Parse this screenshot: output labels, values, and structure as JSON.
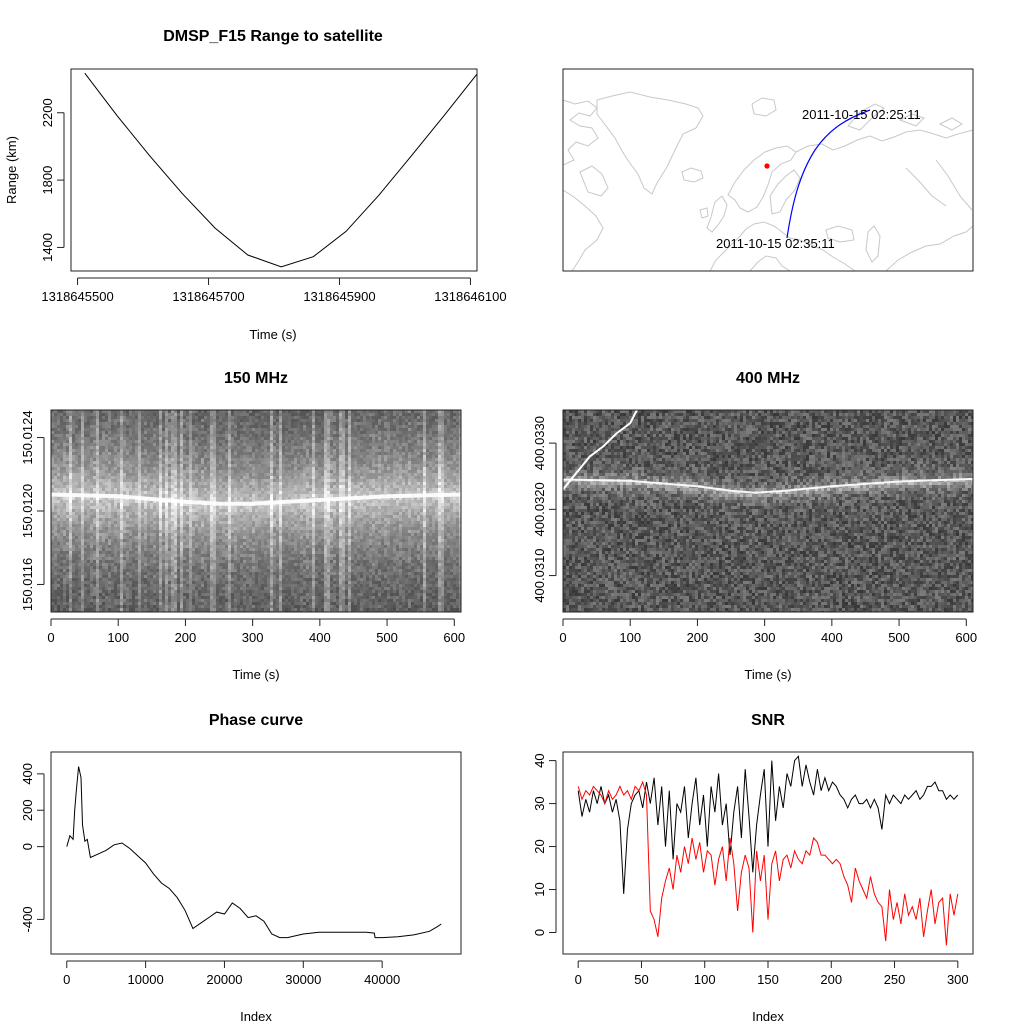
{
  "figure": {
    "background": "#ffffff"
  },
  "chart_data": [
    {
      "id": "range",
      "type": "line",
      "title": "DMSP_F15 Range to satellite",
      "xlabel": "Time (s)",
      "ylabel": "Range (km)",
      "xlim": [
        1318645490,
        1318646110
      ],
      "ylim": [
        1260,
        2460
      ],
      "xticks": [
        1318645500,
        1318645700,
        1318645900,
        1318646100
      ],
      "xtick_labels": [
        "1318645500",
        "1318645700",
        "1318645900",
        "1318646100"
      ],
      "yticks": [
        1400,
        1800,
        2200
      ],
      "ytick_labels": [
        "1400",
        "1800",
        "2200"
      ],
      "series": [
        {
          "color": "#000000",
          "x": [
            1318645511,
            1318645560,
            1318645610,
            1318645660,
            1318645710,
            1318645760,
            1318645811,
            1318645860,
            1318645910,
            1318645960,
            1318646010,
            1318646060,
            1318646111
          ],
          "y": [
            2435,
            2185,
            1945,
            1720,
            1515,
            1355,
            1285,
            1345,
            1495,
            1710,
            1945,
            2185,
            2435
          ]
        }
      ]
    },
    {
      "id": "groundtrack",
      "type": "map",
      "title": "",
      "coastline_color": "#c8c8c8",
      "track_color": "#0000ff",
      "station_color": "#ff0000",
      "track_start_label": "2011-10-15 02:25:11",
      "track_end_label": "2011-10-15 02:35:11"
    },
    {
      "id": "spec150",
      "type": "heatmap",
      "title": "150 MHz",
      "xlabel": "Time (s)",
      "ylabel": "",
      "xlim": [
        0,
        610
      ],
      "ylim": [
        150.01145,
        150.01255
      ],
      "xticks": [
        0,
        100,
        200,
        300,
        400,
        500,
        600
      ],
      "xtick_labels": [
        "0",
        "100",
        "200",
        "300",
        "400",
        "500",
        "600"
      ],
      "yticks": [
        150.0116,
        150.012,
        150.0124
      ],
      "ytick_labels": [
        "150.0116",
        "150.0120",
        "150.0124"
      ],
      "colormap": "grayscale",
      "signal_line": {
        "t": [
          0,
          100,
          200,
          250,
          300,
          350,
          400,
          450,
          500,
          610
        ],
        "f": [
          150.01209,
          150.01208,
          150.01205,
          150.01204,
          150.01204,
          150.01205,
          150.01206,
          150.01207,
          150.01208,
          150.01209
        ]
      }
    },
    {
      "id": "spec400",
      "type": "heatmap",
      "title": "400 MHz",
      "xlabel": "Time (s)",
      "ylabel": "",
      "xlim": [
        0,
        610
      ],
      "ylim": [
        400.03045,
        400.0335
      ],
      "xticks": [
        0,
        100,
        200,
        300,
        400,
        500,
        600
      ],
      "xtick_labels": [
        "0",
        "100",
        "200",
        "300",
        "400",
        "500",
        "600"
      ],
      "yticks": [
        400.031,
        400.032,
        400.033
      ],
      "ytick_labels": [
        "400.0310",
        "400.0320",
        "400.0330"
      ],
      "colormap": "grayscale",
      "signal_line": {
        "t": [
          0,
          100,
          200,
          250,
          285,
          330,
          400,
          500,
          610
        ],
        "f": [
          400.03245,
          400.03243,
          400.03235,
          400.03228,
          400.03225,
          400.03228,
          400.03235,
          400.03242,
          400.03246
        ]
      },
      "doppler_arc": {
        "t": [
          0,
          20,
          40,
          60,
          80,
          100,
          110
        ],
        "f": [
          400.0323,
          400.03255,
          400.0328,
          400.03295,
          400.03315,
          400.0333,
          400.0335
        ]
      }
    },
    {
      "id": "phase",
      "type": "line",
      "title": "Phase curve",
      "xlabel": "Index",
      "ylabel": "",
      "xlim": [
        -2000,
        50000
      ],
      "ylim": [
        -590,
        520
      ],
      "xticks": [
        0,
        10000,
        20000,
        30000,
        40000
      ],
      "xtick_labels": [
        "0",
        "10000",
        "20000",
        "30000",
        "40000"
      ],
      "yticks": [
        -400,
        0,
        200,
        400
      ],
      "ytick_labels": [
        "-400",
        "0",
        "200",
        "400"
      ],
      "series": [
        {
          "color": "#000000",
          "x": [
            0,
            400,
            800,
            1000,
            1200,
            1500,
            1800,
            2000,
            2300,
            2600,
            3000,
            4000,
            5000,
            6000,
            7000,
            8000,
            9000,
            10000,
            11000,
            12000,
            13000,
            14000,
            15000,
            16000,
            17000,
            18000,
            19000,
            20000,
            21000,
            22000,
            23000,
            24000,
            25000,
            26000,
            27000,
            28000,
            30000,
            32000,
            34000,
            36000,
            38000,
            39000,
            39100,
            40000,
            42000,
            44000,
            46000,
            47000,
            47500
          ],
          "y": [
            0,
            60,
            40,
            200,
            300,
            440,
            380,
            120,
            30,
            40,
            -60,
            -40,
            -20,
            10,
            20,
            -10,
            -50,
            -90,
            -150,
            -200,
            -230,
            -280,
            -350,
            -450,
            -420,
            -390,
            -360,
            -370,
            -310,
            -340,
            -390,
            -380,
            -410,
            -480,
            -500,
            -500,
            -480,
            -470,
            -470,
            -470,
            -470,
            -475,
            -500,
            -500,
            -495,
            -485,
            -465,
            -440,
            -425
          ]
        }
      ]
    },
    {
      "id": "snr",
      "type": "line",
      "title": "SNR",
      "xlabel": "Index",
      "ylabel": "",
      "xlim": [
        -12,
        312
      ],
      "ylim": [
        -5,
        42
      ],
      "xticks": [
        0,
        50,
        100,
        150,
        200,
        250,
        300
      ],
      "xtick_labels": [
        "0",
        "50",
        "100",
        "150",
        "200",
        "250",
        "300"
      ],
      "yticks": [
        0,
        10,
        20,
        30,
        40
      ],
      "ytick_labels": [
        "0",
        "10",
        "20",
        "30",
        "40"
      ],
      "series": [
        {
          "color": "#000000",
          "x": [
            0,
            3,
            6,
            9,
            12,
            15,
            18,
            21,
            24,
            27,
            30,
            33,
            36,
            39,
            42,
            45,
            48,
            51,
            54,
            57,
            60,
            63,
            66,
            69,
            72,
            75,
            78,
            81,
            84,
            87,
            90,
            93,
            96,
            99,
            102,
            105,
            108,
            111,
            114,
            117,
            120,
            123,
            126,
            129,
            132,
            135,
            138,
            141,
            144,
            147,
            150,
            153,
            156,
            159,
            162,
            165,
            168,
            171,
            174,
            177,
            180,
            183,
            186,
            189,
            192,
            195,
            198,
            201,
            204,
            207,
            210,
            213,
            216,
            219,
            222,
            225,
            228,
            231,
            234,
            237,
            240,
            243,
            246,
            249,
            252,
            255,
            258,
            261,
            264,
            267,
            270,
            273,
            276,
            279,
            282,
            285,
            288,
            291,
            294,
            297,
            300
          ],
          "y": [
            33,
            27,
            31,
            28,
            33,
            30,
            34,
            30,
            32,
            28,
            31,
            26,
            9,
            24,
            30,
            32,
            33,
            29,
            35,
            30,
            36,
            25,
            34,
            20,
            33,
            17,
            30,
            28,
            34,
            22,
            30,
            36,
            25,
            32,
            20,
            34,
            28,
            37,
            25,
            30,
            18,
            28,
            34,
            22,
            38,
            27,
            14,
            25,
            32,
            38,
            20,
            40,
            26,
            34,
            29,
            37,
            34,
            40,
            41,
            34,
            39,
            35,
            32,
            38,
            33,
            36,
            33,
            35,
            34,
            32,
            31,
            29,
            31,
            32,
            30,
            30,
            31,
            29,
            31,
            29,
            24,
            32,
            30,
            32,
            31,
            30,
            32,
            31,
            32,
            33,
            31,
            32,
            34,
            34,
            35,
            33,
            33,
            31,
            32,
            31,
            32
          ]
        },
        {
          "color": "#ff0000",
          "x": [
            0,
            3,
            6,
            9,
            12,
            15,
            18,
            21,
            24,
            27,
            30,
            33,
            36,
            39,
            42,
            45,
            48,
            51,
            54,
            57,
            60,
            63,
            66,
            69,
            72,
            75,
            78,
            81,
            84,
            87,
            90,
            93,
            96,
            99,
            102,
            105,
            108,
            111,
            114,
            117,
            120,
            123,
            126,
            129,
            132,
            135,
            138,
            141,
            144,
            147,
            150,
            153,
            156,
            159,
            162,
            165,
            168,
            171,
            174,
            177,
            180,
            183,
            186,
            189,
            192,
            195,
            198,
            201,
            204,
            207,
            210,
            213,
            216,
            219,
            222,
            225,
            228,
            231,
            234,
            237,
            240,
            243,
            246,
            249,
            252,
            255,
            258,
            261,
            264,
            267,
            270,
            273,
            276,
            279,
            282,
            285,
            288,
            291,
            294,
            297,
            300
          ],
          "y": [
            34,
            31,
            33,
            32,
            34,
            33,
            32,
            30,
            33,
            31,
            32,
            34,
            32,
            33,
            31,
            34,
            33,
            35,
            32,
            5,
            3,
            -1,
            8,
            12,
            15,
            10,
            18,
            14,
            20,
            16,
            22,
            17,
            21,
            14,
            19,
            18,
            11,
            17,
            20,
            12,
            22,
            16,
            5,
            14,
            18,
            15,
            0,
            19,
            12,
            18,
            3,
            16,
            19,
            12,
            17,
            18,
            15,
            19,
            17,
            16,
            19,
            18,
            22,
            21,
            18,
            18,
            17,
            16,
            17,
            16,
            13,
            11,
            7,
            15,
            12,
            10,
            8,
            13,
            9,
            7,
            6,
            -2,
            10,
            3,
            7,
            2,
            9,
            4,
            6,
            3,
            8,
            -1,
            5,
            10,
            2,
            7,
            8,
            -3,
            9,
            4,
            9
          ]
        }
      ]
    }
  ]
}
